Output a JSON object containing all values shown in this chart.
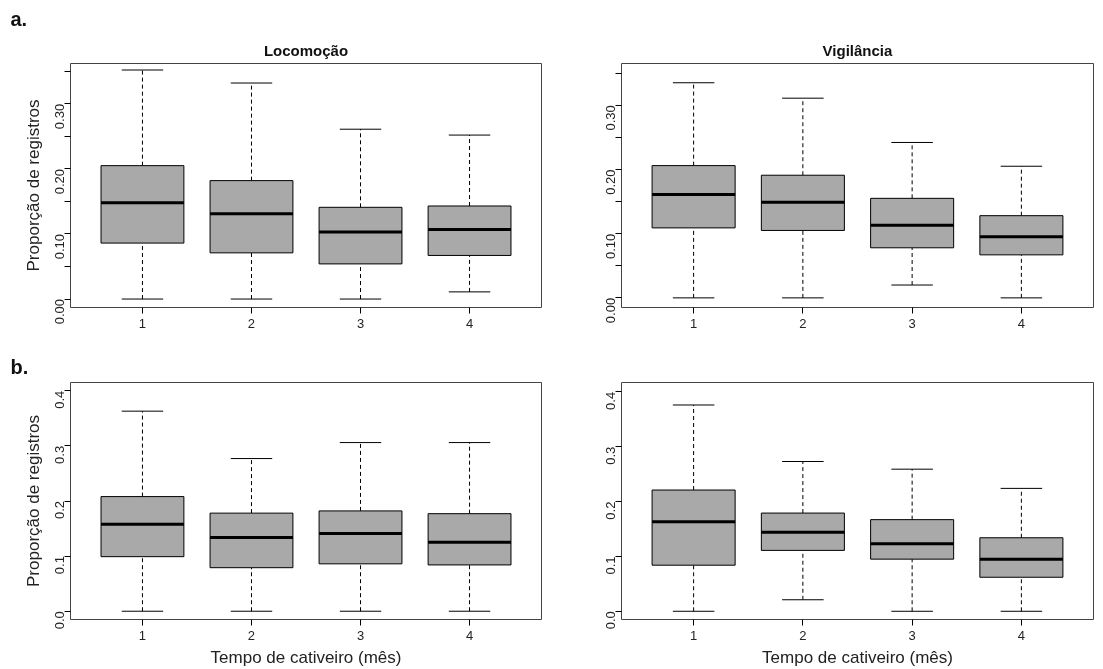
{
  "chart_data": [
    {
      "type": "box",
      "title": "Locomoção",
      "ylabel": "Proporção de registros",
      "annotations": [
        "a."
      ],
      "categories": [
        "1",
        "2",
        "3",
        "4"
      ],
      "ylim": [
        -0.013,
        0.362
      ],
      "yticks": [
        {
          "value": 0,
          "label": "0.00"
        },
        {
          "value": 0.05,
          "label": null
        },
        {
          "value": 0.1,
          "label": "0.10"
        },
        {
          "value": 0.15,
          "label": null
        },
        {
          "value": 0.2,
          "label": "0.20"
        },
        {
          "value": 0.25,
          "label": null
        },
        {
          "value": 0.3,
          "label": "0.30"
        },
        {
          "value": 0.35,
          "label": null
        }
      ],
      "grid": false,
      "color": "#a9a9a9",
      "boxes": [
        {
          "low": 0,
          "q1": 0.086,
          "median": 0.148,
          "q3": 0.205,
          "high": 0.352
        },
        {
          "low": 0,
          "q1": 0.071,
          "median": 0.131,
          "q3": 0.182,
          "high": 0.332
        },
        {
          "low": 0,
          "q1": 0.054,
          "median": 0.103,
          "q3": 0.141,
          "high": 0.261
        },
        {
          "low": 0.011,
          "q1": 0.067,
          "median": 0.107,
          "q3": 0.143,
          "high": 0.252
        }
      ]
    },
    {
      "type": "box",
      "title": "Vigilância",
      "categories": [
        "1",
        "2",
        "3",
        "4"
      ],
      "ylim": [
        -0.015,
        0.365
      ],
      "yticks": [
        {
          "value": 0,
          "label": "0.00"
        },
        {
          "value": 0.05,
          "label": null
        },
        {
          "value": 0.1,
          "label": "0.10"
        },
        {
          "value": 0.15,
          "label": null
        },
        {
          "value": 0.2,
          "label": "0.20"
        },
        {
          "value": 0.25,
          "label": null
        },
        {
          "value": 0.3,
          "label": "0.30"
        },
        {
          "value": 0.35,
          "label": null
        }
      ],
      "grid": false,
      "color": "#a9a9a9",
      "boxes": [
        {
          "low": 0,
          "q1": 0.109,
          "median": 0.161,
          "q3": 0.206,
          "high": 0.335
        },
        {
          "low": 0,
          "q1": 0.105,
          "median": 0.149,
          "q3": 0.191,
          "high": 0.311
        },
        {
          "low": 0.02,
          "q1": 0.078,
          "median": 0.113,
          "q3": 0.155,
          "high": 0.242
        },
        {
          "low": 0,
          "q1": 0.067,
          "median": 0.095,
          "q3": 0.128,
          "high": 0.205
        }
      ]
    },
    {
      "type": "box",
      "xlabel": "Tempo de cativeiro (mês)",
      "ylabel": "Proporção de registros",
      "annotations": [
        "b."
      ],
      "categories": [
        "1",
        "2",
        "3",
        "4"
      ],
      "ylim": [
        -0.015,
        0.415
      ],
      "yticks": [
        {
          "value": 0,
          "label": "0.0"
        },
        0.1,
        0.2,
        0.3,
        0.4
      ],
      "grid": false,
      "color": "#a9a9a9",
      "boxes": [
        {
          "low": 0,
          "q1": 0.099,
          "median": 0.158,
          "q3": 0.208,
          "high": 0.363
        },
        {
          "low": 0,
          "q1": 0.079,
          "median": 0.134,
          "q3": 0.178,
          "high": 0.277
        },
        {
          "low": 0,
          "q1": 0.086,
          "median": 0.141,
          "q3": 0.182,
          "high": 0.306
        },
        {
          "low": 0,
          "q1": 0.084,
          "median": 0.125,
          "q3": 0.177,
          "high": 0.306
        }
      ]
    },
    {
      "type": "box",
      "xlabel": "Tempo de cativeiro (mês)",
      "categories": [
        "1",
        "2",
        "3",
        "4"
      ],
      "ylim": [
        -0.015,
        0.417
      ],
      "yticks": [
        {
          "value": 0,
          "label": "0.0"
        },
        0.1,
        0.2,
        0.3,
        0.4
      ],
      "grid": false,
      "color": "#a9a9a9",
      "boxes": [
        {
          "low": 0,
          "q1": 0.084,
          "median": 0.163,
          "q3": 0.221,
          "high": 0.376
        },
        {
          "low": 0.021,
          "q1": 0.111,
          "median": 0.144,
          "q3": 0.179,
          "high": 0.273
        },
        {
          "low": 0,
          "q1": 0.095,
          "median": 0.123,
          "q3": 0.167,
          "high": 0.259
        },
        {
          "low": 0,
          "q1": 0.062,
          "median": 0.095,
          "q3": 0.134,
          "high": 0.224
        }
      ]
    }
  ]
}
